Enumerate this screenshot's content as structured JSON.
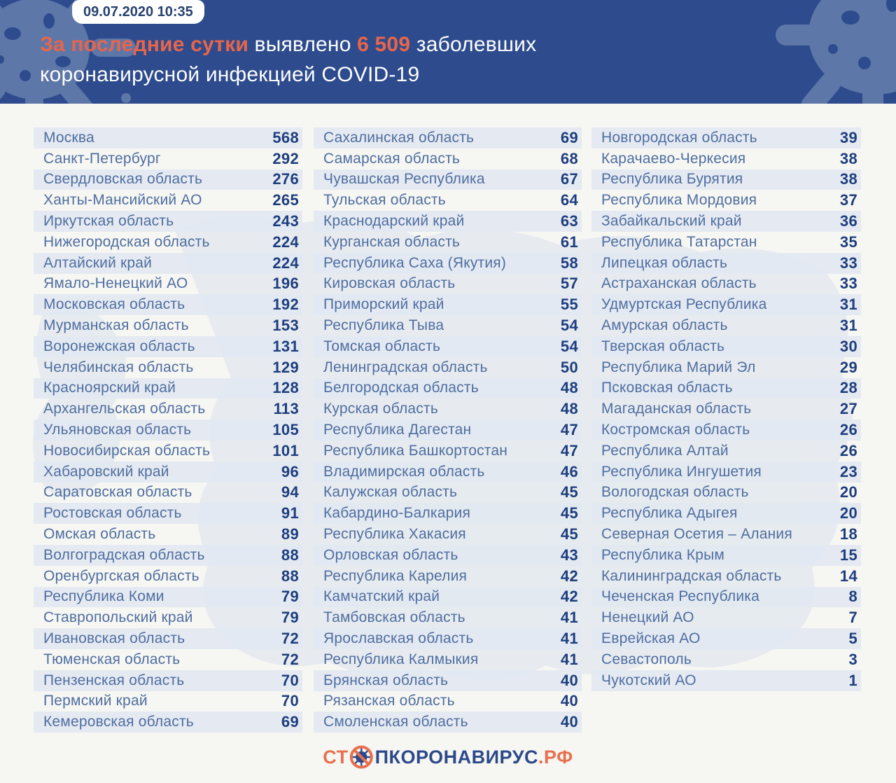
{
  "header": {
    "timestamp": "09.07.2020 10:35",
    "title_line1_highlight": "За последние сутки",
    "title_line1_mid": " выявлено ",
    "title_line1_number": "6 509",
    "title_line1_end": " заболевших",
    "title_line2": "коронавирусной инфекцией COVID-19"
  },
  "colors": {
    "header_bg": "#2e4c8d",
    "blob": "#5d77a9",
    "accent_orange": "#e8654a",
    "page_bg": "#f6f6f3",
    "stripe": "#e2e8f1",
    "region_text": "#4f6ea0",
    "value_text": "#1d3e7e",
    "map_silhouette": "#dde4ee"
  },
  "footer": {
    "logo_prefix": "СТ",
    "logo_mid": "ПКОРОНАВИРУС",
    "logo_suffix": ".РФ"
  },
  "chart_data": {
    "type": "table",
    "title": "За последние сутки выявлено 6 509 заболевших коронавирусной инфекцией COVID-19",
    "timestamp": "09.07.2020 10:35",
    "total_new_cases": 6509,
    "value_meaning": "новые случаи COVID-19 за сутки по регионам",
    "columns": [
      {
        "rows": [
          [
            "Москва",
            568
          ],
          [
            "Санкт-Петербург",
            292
          ],
          [
            "Свердловская область",
            276
          ],
          [
            "Ханты-Мансийский АО",
            265
          ],
          [
            "Иркутская область",
            243
          ],
          [
            "Нижегородская область",
            224
          ],
          [
            "Алтайский край",
            224
          ],
          [
            "Ямало-Ненецкий АО",
            196
          ],
          [
            "Московская область",
            192
          ],
          [
            "Мурманская область",
            153
          ],
          [
            "Воронежская область",
            131
          ],
          [
            "Челябинская область",
            129
          ],
          [
            "Красноярский край",
            128
          ],
          [
            "Архангельская область",
            113
          ],
          [
            "Ульяновская область",
            105
          ],
          [
            "Новосибирская область",
            101
          ],
          [
            "Хабаровский край",
            96
          ],
          [
            "Саратовская область",
            94
          ],
          [
            "Ростовская область",
            91
          ],
          [
            "Омская область",
            89
          ],
          [
            "Волгоградская область",
            88
          ],
          [
            "Оренбургская область",
            88
          ],
          [
            "Республика Коми",
            79
          ],
          [
            "Ставропольский край",
            79
          ],
          [
            "Ивановская область",
            72
          ],
          [
            "Тюменская область",
            72
          ],
          [
            "Пензенская область",
            70
          ],
          [
            "Пермский край",
            70
          ],
          [
            "Кемеровская область",
            69
          ]
        ]
      },
      {
        "rows": [
          [
            "Сахалинская область",
            69
          ],
          [
            "Самарская область",
            68
          ],
          [
            "Чувашская Республика",
            67
          ],
          [
            "Тульская область",
            64
          ],
          [
            "Краснодарский край",
            63
          ],
          [
            "Курганская область",
            61
          ],
          [
            "Республика Саха (Якутия)",
            58
          ],
          [
            "Кировская область",
            57
          ],
          [
            "Приморский край",
            55
          ],
          [
            "Республика Тыва",
            54
          ],
          [
            "Томская область",
            54
          ],
          [
            "Ленинградская область",
            50
          ],
          [
            "Белгородская область",
            48
          ],
          [
            "Курская область",
            48
          ],
          [
            "Республика Дагестан",
            47
          ],
          [
            "Республика Башкортостан",
            47
          ],
          [
            "Владимирская область",
            46
          ],
          [
            "Калужская область",
            45
          ],
          [
            "Кабардино-Балкария",
            45
          ],
          [
            "Республика Хакасия",
            45
          ],
          [
            "Орловская область",
            43
          ],
          [
            "Республика Карелия",
            42
          ],
          [
            "Камчатский край",
            42
          ],
          [
            "Тамбовская область",
            41
          ],
          [
            "Ярославская область",
            41
          ],
          [
            "Республика Калмыкия",
            41
          ],
          [
            "Брянская область",
            40
          ],
          [
            "Рязанская область",
            40
          ],
          [
            "Смоленская область",
            40
          ]
        ]
      },
      {
        "rows": [
          [
            "Новгородская область",
            39
          ],
          [
            "Карачаево-Черкесия",
            38
          ],
          [
            "Республика Бурятия",
            38
          ],
          [
            "Республика Мордовия",
            37
          ],
          [
            "Забайкальский край",
            36
          ],
          [
            "Республика Татарстан",
            35
          ],
          [
            "Липецкая область",
            33
          ],
          [
            "Астраханская область",
            33
          ],
          [
            "Удмуртская Республика",
            31
          ],
          [
            "Амурская область",
            31
          ],
          [
            "Тверская область",
            30
          ],
          [
            "Республика Марий Эл",
            29
          ],
          [
            "Псковская область",
            28
          ],
          [
            "Магаданская область",
            27
          ],
          [
            "Костромская область",
            26
          ],
          [
            "Республика Алтай",
            26
          ],
          [
            "Республика Ингушетия",
            23
          ],
          [
            "Вологодская область",
            20
          ],
          [
            "Республика Адыгея",
            20
          ],
          [
            "Северная Осетия – Алания",
            18
          ],
          [
            "Республика Крым",
            15
          ],
          [
            "Калининградская область",
            14
          ],
          [
            "Чеченская Республика",
            8
          ],
          [
            "Ненецкий АО",
            7
          ],
          [
            "Еврейская АО",
            5
          ],
          [
            "Севастополь",
            3
          ],
          [
            "Чукотский АО",
            1
          ]
        ]
      }
    ]
  }
}
